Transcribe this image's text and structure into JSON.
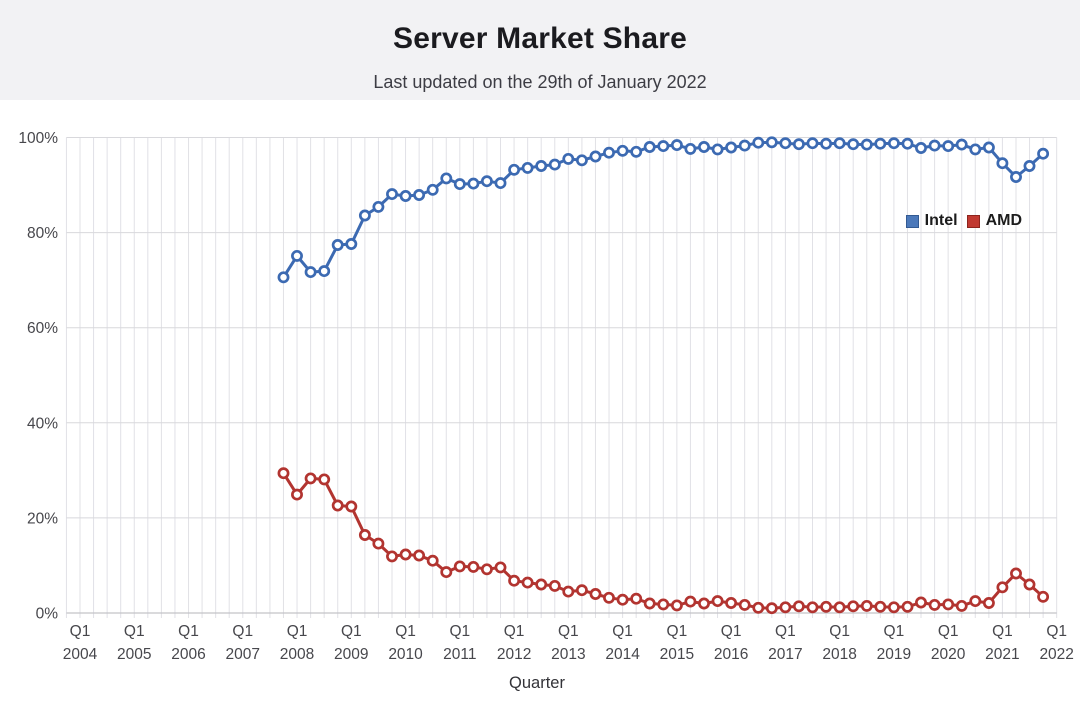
{
  "page": {
    "title": "Server Market Share",
    "subtitle": "Last updated on the 29th of January 2022"
  },
  "legend": {
    "items": [
      {
        "label": "Intel",
        "color": "#4c79ba",
        "border": "#335a92"
      },
      {
        "label": "AMD",
        "color": "#c13931",
        "border": "#8d241d"
      }
    ]
  },
  "chart_data": {
    "type": "line",
    "title": "Server Market Share",
    "subtitle": "Last updated on the 29th of January 2022",
    "xlabel": "Quarter",
    "ylabel": "",
    "ylim": [
      0,
      100
    ],
    "grid": "on",
    "legend_position": "top-right",
    "y_axis": {
      "ticks": [
        "0%",
        "20%",
        "40%",
        "60%",
        "80%",
        "100%"
      ]
    },
    "x_axis": {
      "label": "Quarter",
      "tick_line1": "Q1",
      "years": [
        "2004",
        "2005",
        "2006",
        "2007",
        "2008",
        "2009",
        "2010",
        "2011",
        "2012",
        "2013",
        "2014",
        "2015",
        "2016",
        "2017",
        "2018",
        "2019",
        "2020",
        "2021",
        "2022"
      ]
    },
    "categories": [
      "Q4 2007",
      "Q1 2008",
      "Q2 2008",
      "Q3 2008",
      "Q4 2008",
      "Q1 2009",
      "Q2 2009",
      "Q3 2009",
      "Q4 2009",
      "Q1 2010",
      "Q2 2010",
      "Q3 2010",
      "Q4 2010",
      "Q1 2011",
      "Q2 2011",
      "Q3 2011",
      "Q4 2011",
      "Q1 2012",
      "Q2 2012",
      "Q3 2012",
      "Q4 2012",
      "Q1 2013",
      "Q2 2013",
      "Q3 2013",
      "Q4 2013",
      "Q1 2014",
      "Q2 2014",
      "Q3 2014",
      "Q4 2014",
      "Q1 2015",
      "Q2 2015",
      "Q3 2015",
      "Q4 2015",
      "Q1 2016",
      "Q2 2016",
      "Q3 2016",
      "Q4 2016",
      "Q1 2017",
      "Q2 2017",
      "Q3 2017",
      "Q4 2017",
      "Q1 2018",
      "Q2 2018",
      "Q3 2018",
      "Q4 2018",
      "Q1 2019",
      "Q2 2019",
      "Q3 2019",
      "Q4 2019",
      "Q1 2020",
      "Q2 2020",
      "Q3 2020",
      "Q4 2020",
      "Q1 2021",
      "Q2 2021",
      "Q3 2021",
      "Q4 2021"
    ],
    "series": [
      {
        "name": "Intel",
        "color": "#3c6ab2",
        "values": [
          70.6,
          75.1,
          71.7,
          71.9,
          77.4,
          77.6,
          83.6,
          85.4,
          88.1,
          87.7,
          87.9,
          89.0,
          91.4,
          90.2,
          90.3,
          90.8,
          90.4,
          93.2,
          93.6,
          94.0,
          94.3,
          95.5,
          95.2,
          96.0,
          96.8,
          97.2,
          97.0,
          98.0,
          98.2,
          98.4,
          97.6,
          98.0,
          97.5,
          97.9,
          98.3,
          98.9,
          99.0,
          98.8,
          98.6,
          98.8,
          98.7,
          98.8,
          98.6,
          98.5,
          98.7,
          98.8,
          98.7,
          97.8,
          98.3,
          98.2,
          98.5,
          97.5,
          97.9,
          94.6,
          91.7,
          94.0,
          96.6
        ]
      },
      {
        "name": "AMD",
        "color": "#b23430",
        "values": [
          29.4,
          24.9,
          28.3,
          28.1,
          22.6,
          22.4,
          16.4,
          14.6,
          11.9,
          12.3,
          12.1,
          11.0,
          8.6,
          9.8,
          9.7,
          9.2,
          9.6,
          6.8,
          6.4,
          6.0,
          5.7,
          4.5,
          4.8,
          4.0,
          3.2,
          2.8,
          3.0,
          2.0,
          1.8,
          1.6,
          2.4,
          2.0,
          2.5,
          2.1,
          1.7,
          1.1,
          1.0,
          1.2,
          1.4,
          1.2,
          1.3,
          1.2,
          1.4,
          1.5,
          1.3,
          1.2,
          1.3,
          2.2,
          1.7,
          1.8,
          1.5,
          2.5,
          2.1,
          5.4,
          8.3,
          6.0,
          3.4
        ]
      }
    ]
  }
}
